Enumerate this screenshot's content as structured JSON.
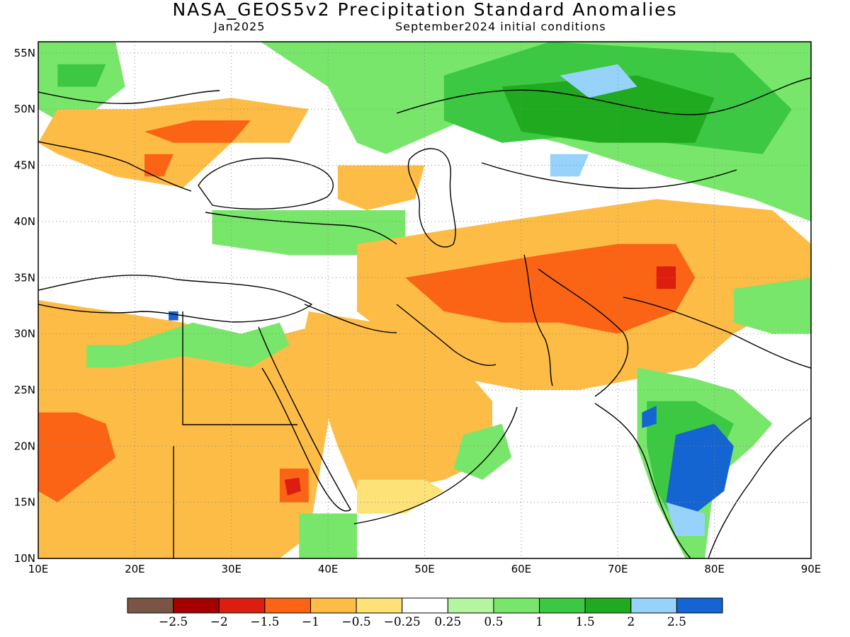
{
  "header": {
    "title": "NASA_GEOS5v2 Precipitation Standard Anomalies",
    "month": "Jan2025",
    "init": "September2024 initial conditions"
  },
  "map": {
    "lon_range": [
      10,
      90
    ],
    "lat_range": [
      10,
      56
    ],
    "lat_ticks": [
      {
        "value": 55,
        "label": "55N"
      },
      {
        "value": 50,
        "label": "50N"
      },
      {
        "value": 45,
        "label": "45N"
      },
      {
        "value": 40,
        "label": "40N"
      },
      {
        "value": 35,
        "label": "35N"
      },
      {
        "value": 30,
        "label": "30N"
      },
      {
        "value": 25,
        "label": "25N"
      },
      {
        "value": 20,
        "label": "20N"
      },
      {
        "value": 15,
        "label": "15N"
      },
      {
        "value": 10,
        "label": "10N"
      }
    ],
    "lon_ticks": [
      {
        "value": 10,
        "label": "10E"
      },
      {
        "value": 20,
        "label": "20E"
      },
      {
        "value": 30,
        "label": "30E"
      },
      {
        "value": 40,
        "label": "40E"
      },
      {
        "value": 50,
        "label": "50E"
      },
      {
        "value": 60,
        "label": "60E"
      },
      {
        "value": 70,
        "label": "70E"
      },
      {
        "value": 80,
        "label": "80E"
      },
      {
        "value": 90,
        "label": "90E"
      }
    ],
    "grid": "dotted"
  },
  "colorbar": {
    "colors": [
      "#7a5546",
      "#a40000",
      "#dc1e10",
      "#fa6414",
      "#fdbc45",
      "#fde278",
      "#ffffff",
      "#b4f5a0",
      "#78e66a",
      "#3cc842",
      "#20aa20",
      "#96d2fa",
      "#1464d2"
    ],
    "labels": [
      "−2.5",
      "−2",
      "−1.5",
      "−1",
      "−0.5",
      "−0.25",
      "0.25",
      "0.5",
      "1",
      "1.5",
      "2",
      "2.5"
    ]
  },
  "anomaly_regions": [
    {
      "label": "central europe green",
      "color": "#78e66a",
      "pts": [
        [
          10,
          56
        ],
        [
          18,
          56
        ],
        [
          19,
          52
        ],
        [
          16,
          50
        ],
        [
          12,
          49
        ],
        [
          10,
          50
        ]
      ]
    },
    {
      "label": "poland green",
      "color": "#3cc842",
      "pts": [
        [
          12,
          54
        ],
        [
          17,
          54
        ],
        [
          16,
          52
        ],
        [
          12,
          52
        ]
      ]
    },
    {
      "label": "russia green",
      "color": "#78e66a",
      "pts": [
        [
          37,
          56
        ],
        [
          90,
          56
        ],
        [
          90,
          40
        ],
        [
          84,
          42
        ],
        [
          75,
          44
        ],
        [
          64,
          47
        ],
        [
          54,
          49
        ],
        [
          46,
          46
        ],
        [
          43,
          47
        ],
        [
          40,
          52
        ],
        [
          33,
          56
        ]
      ]
    },
    {
      "label": "russia dark green",
      "color": "#3cc842",
      "pts": [
        [
          52,
          53
        ],
        [
          63,
          56
        ],
        [
          82,
          55
        ],
        [
          88,
          50
        ],
        [
          85,
          46
        ],
        [
          75,
          47
        ],
        [
          70,
          48
        ],
        [
          58,
          47
        ],
        [
          52,
          49
        ]
      ]
    },
    {
      "label": "kazakh deep green",
      "color": "#20aa20",
      "pts": [
        [
          58,
          52
        ],
        [
          72,
          53
        ],
        [
          80,
          51
        ],
        [
          78,
          47
        ],
        [
          68,
          47
        ],
        [
          60,
          48
        ]
      ]
    },
    {
      "label": "kazakh light blue",
      "color": "#96d2fa",
      "pts": [
        [
          64,
          53
        ],
        [
          70,
          54
        ],
        [
          72,
          52
        ],
        [
          67,
          51
        ]
      ]
    },
    {
      "label": "kazakh blue 2",
      "color": "#96d2fa",
      "pts": [
        [
          63,
          46
        ],
        [
          67,
          46
        ],
        [
          66,
          44
        ],
        [
          63,
          44
        ]
      ]
    },
    {
      "label": "ukraine hungary orange",
      "color": "#fdbc45",
      "pts": [
        [
          12,
          50
        ],
        [
          20,
          50
        ],
        [
          30,
          51
        ],
        [
          38,
          50
        ],
        [
          36,
          47
        ],
        [
          30,
          47
        ],
        [
          25,
          43
        ],
        [
          18,
          44
        ],
        [
          12,
          46
        ],
        [
          10,
          47
        ]
      ]
    },
    {
      "label": "carpathian dark orange",
      "color": "#fa6414",
      "pts": [
        [
          21,
          48
        ],
        [
          26,
          49
        ],
        [
          32,
          49
        ],
        [
          30,
          47
        ],
        [
          24,
          47
        ]
      ]
    },
    {
      "label": "romania dark orange",
      "color": "#fa6414",
      "pts": [
        [
          21,
          46
        ],
        [
          24,
          46
        ],
        [
          23,
          44
        ],
        [
          21,
          44
        ]
      ]
    },
    {
      "label": "black sea region orange",
      "color": "#fdbc45",
      "pts": [
        [
          41,
          45
        ],
        [
          50,
          45
        ],
        [
          49,
          42
        ],
        [
          44,
          41
        ],
        [
          41,
          42
        ]
      ]
    },
    {
      "label": "turkey green",
      "color": "#78e66a",
      "pts": [
        [
          28,
          41
        ],
        [
          48,
          41
        ],
        [
          48,
          37
        ],
        [
          42,
          37
        ],
        [
          36,
          37
        ],
        [
          28,
          38
        ]
      ]
    },
    {
      "label": "iran pakistan orange",
      "color": "#fdbc45",
      "pts": [
        [
          43,
          38
        ],
        [
          58,
          40
        ],
        [
          74,
          42
        ],
        [
          86,
          41
        ],
        [
          90,
          38
        ],
        [
          90,
          35
        ],
        [
          86,
          32
        ],
        [
          82,
          30
        ],
        [
          78,
          27
        ],
        [
          72,
          26
        ],
        [
          66,
          25
        ],
        [
          60,
          25
        ],
        [
          54,
          26
        ],
        [
          49,
          28
        ],
        [
          43,
          32
        ]
      ]
    },
    {
      "label": "iran dark orange",
      "color": "#fa6414",
      "pts": [
        [
          48,
          35
        ],
        [
          55,
          36
        ],
        [
          62,
          37
        ],
        [
          70,
          38
        ],
        [
          76,
          38
        ],
        [
          78,
          35
        ],
        [
          76,
          32
        ],
        [
          70,
          30
        ],
        [
          64,
          31
        ],
        [
          58,
          31
        ],
        [
          52,
          32
        ]
      ]
    },
    {
      "label": "hindukush red",
      "color": "#dc1e10",
      "pts": [
        [
          74,
          36
        ],
        [
          76,
          36
        ],
        [
          76,
          34
        ],
        [
          74,
          34
        ]
      ]
    },
    {
      "label": "arabia orange",
      "color": "#fdbc45",
      "pts": [
        [
          38,
          32
        ],
        [
          45,
          31
        ],
        [
          50,
          29
        ],
        [
          55,
          26
        ],
        [
          57,
          24
        ],
        [
          57,
          19
        ],
        [
          52,
          17
        ],
        [
          46,
          16
        ],
        [
          43,
          16
        ],
        [
          41,
          20
        ],
        [
          39,
          25
        ],
        [
          37,
          28
        ]
      ]
    },
    {
      "label": "arabia yellow",
      "color": "#fde278",
      "pts": [
        [
          43,
          17
        ],
        [
          50,
          17
        ],
        [
          52,
          16
        ],
        [
          48,
          14
        ],
        [
          43,
          14
        ]
      ]
    },
    {
      "label": "oman green",
      "color": "#78e66a",
      "pts": [
        [
          54,
          21
        ],
        [
          58,
          22
        ],
        [
          59,
          19
        ],
        [
          56,
          17
        ],
        [
          53,
          18
        ]
      ]
    },
    {
      "label": "sahara orange",
      "color": "#fdbc45",
      "pts": [
        [
          10,
          33
        ],
        [
          25,
          31
        ],
        [
          31,
          29
        ],
        [
          40,
          31
        ],
        [
          40,
          22
        ],
        [
          39,
          17
        ],
        [
          38,
          12
        ],
        [
          35,
          10
        ],
        [
          10,
          10
        ]
      ]
    },
    {
      "label": "chad dark orange",
      "color": "#fa6414",
      "pts": [
        [
          10,
          23
        ],
        [
          14,
          23
        ],
        [
          17,
          22
        ],
        [
          18,
          19
        ],
        [
          15,
          17
        ],
        [
          12,
          15
        ],
        [
          10,
          16
        ]
      ]
    },
    {
      "label": "sudan dark orange",
      "color": "#fa6414",
      "pts": [
        [
          35,
          18
        ],
        [
          38,
          18
        ],
        [
          38,
          15
        ],
        [
          35,
          15
        ]
      ]
    },
    {
      "label": "sudan red",
      "color": "#dc1e10",
      "pts": [
        [
          35.5,
          17
        ],
        [
          37,
          17.2
        ],
        [
          37.2,
          16
        ],
        [
          35.8,
          15.6
        ]
      ]
    },
    {
      "label": "egypt green",
      "color": "#78e66a",
      "pts": [
        [
          15,
          29
        ],
        [
          19,
          29
        ],
        [
          26,
          31
        ],
        [
          31,
          30
        ],
        [
          35,
          31
        ],
        [
          36,
          29
        ],
        [
          32,
          27
        ],
        [
          25,
          28
        ],
        [
          18,
          27
        ],
        [
          15,
          27
        ]
      ]
    },
    {
      "label": "ethiopia green",
      "color": "#78e66a",
      "pts": [
        [
          37,
          14
        ],
        [
          43,
          14
        ],
        [
          43,
          10
        ],
        [
          37,
          10
        ]
      ]
    },
    {
      "label": "india green",
      "color": "#78e66a",
      "pts": [
        [
          72,
          27
        ],
        [
          78,
          26
        ],
        [
          82,
          25
        ],
        [
          86,
          22
        ],
        [
          84,
          20
        ],
        [
          80,
          17
        ],
        [
          79,
          10
        ],
        [
          77,
          10
        ],
        [
          74,
          15
        ],
        [
          72,
          20
        ],
        [
          72,
          24
        ]
      ]
    },
    {
      "label": "india dark green",
      "color": "#3cc842",
      "pts": [
        [
          73,
          24
        ],
        [
          78,
          24
        ],
        [
          82,
          22
        ],
        [
          80,
          18
        ],
        [
          78,
          14
        ],
        [
          76,
          13
        ],
        [
          74,
          16
        ],
        [
          73,
          20
        ]
      ]
    },
    {
      "label": "india blue",
      "color": "#1464d2",
      "pts": [
        [
          76,
          21
        ],
        [
          80,
          22
        ],
        [
          82,
          20
        ],
        [
          81,
          16
        ],
        [
          78,
          14
        ],
        [
          75,
          15
        ]
      ]
    },
    {
      "label": "india light blue",
      "color": "#96d2fa",
      "pts": [
        [
          75,
          15
        ],
        [
          79,
          14
        ],
        [
          79,
          12
        ],
        [
          76,
          12
        ]
      ]
    },
    {
      "label": "gujarat blue",
      "color": "#1464d2",
      "pts": [
        [
          72.5,
          23
        ],
        [
          74,
          23.6
        ],
        [
          74,
          22
        ],
        [
          72.5,
          21.6
        ]
      ]
    },
    {
      "label": "nepal green",
      "color": "#78e66a",
      "pts": [
        [
          82,
          34
        ],
        [
          90,
          35
        ],
        [
          90,
          30
        ],
        [
          86,
          30
        ],
        [
          82,
          31
        ]
      ]
    },
    {
      "label": "nile delta blue",
      "color": "#1464d2",
      "pts": [
        [
          23.5,
          32
        ],
        [
          24.5,
          32
        ],
        [
          24.5,
          31.2
        ],
        [
          23.5,
          31.2
        ]
      ]
    }
  ]
}
